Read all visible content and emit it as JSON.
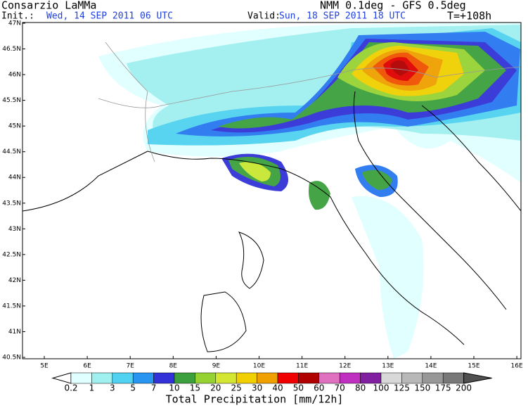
{
  "header": {
    "agency": "Consarzio LaMMa",
    "model": "NMM 0.1deg - GFS 0.5deg",
    "init_label": "Init.:",
    "init_time": "Wed, 14 SEP 2011  06 UTC",
    "valid_label": "Valid:",
    "valid_time": "Sun, 18 SEP 2011  18 UTC",
    "lead_time": "T=+108h"
  },
  "map": {
    "lat_labels": [
      "47N",
      "46.5N",
      "46N",
      "45.5N",
      "45N",
      "44.5N",
      "44N",
      "43.5N",
      "43N",
      "42.5N",
      "42N",
      "41.5N",
      "41N",
      "40.5N"
    ],
    "lon_labels": [
      "5E",
      "6E",
      "7E",
      "8E",
      "9E",
      "10E",
      "11E",
      "12E",
      "13E",
      "14E",
      "15E",
      "16E"
    ]
  },
  "legend": {
    "title": "Total Precipitation [mm/12h]",
    "levels": [
      0.2,
      1,
      3,
      5,
      7,
      10,
      15,
      20,
      25,
      30,
      40,
      50,
      60,
      70,
      80,
      100,
      125,
      150,
      175,
      200
    ],
    "colors": [
      "#ffffff",
      "#e0ffff",
      "#a0f0f0",
      "#50d2f0",
      "#2896f0",
      "#3232d8",
      "#3ca03c",
      "#96d232",
      "#d2e632",
      "#f0d000",
      "#f0a000",
      "#f00000",
      "#b00000",
      "#e070c0",
      "#c030c0",
      "#8020a0",
      "#d8d8d8",
      "#b8b8b8",
      "#989898",
      "#787878",
      "#505050"
    ]
  }
}
